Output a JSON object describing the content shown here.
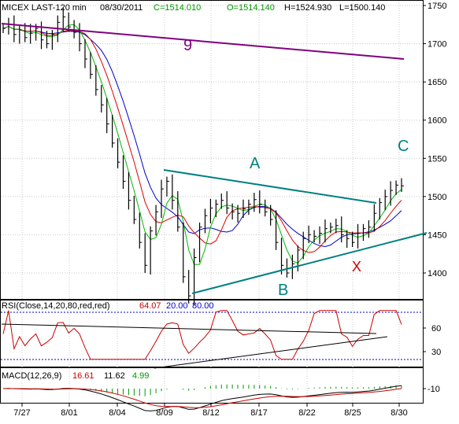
{
  "header": {
    "symbol": "MICEX LAST-120 min",
    "date": "08/30/2011",
    "close": "C=1514.010",
    "open": "O=1514.140",
    "high": "H=1524.930",
    "low": "L=1500.140"
  },
  "annotations": {
    "wave_9": "9",
    "point_a": "A",
    "point_b": "B",
    "point_c": "C",
    "point_x": "X"
  },
  "rsi_panel": {
    "label": "RSI(Close,14,20,80,red,red)",
    "value": "64.07",
    "lower": "20.00",
    "upper": "80.00",
    "ticks": [
      "60",
      "30"
    ]
  },
  "macd_panel": {
    "label": "MACD(12,26,9)",
    "macd": "16.61",
    "signal": "11.62",
    "hist": "4.99",
    "ticks": [
      "-10"
    ]
  },
  "colors": {
    "price": "#000000",
    "ma_fast": "#00bb00",
    "ma_mid": "#dd0000",
    "ma_slow": "#0000cc",
    "trendline": "#008080",
    "wave_line": "#800080",
    "rsi_line": "#cc0000",
    "label_red": "#cc0000",
    "label_blue": "#0000cc",
    "label_green": "#009900"
  },
  "chart_data": {
    "type": "line",
    "title": "MICEX LAST-120 min",
    "x_ticks": [
      "7/27",
      "8/01",
      "8/04",
      "8/09",
      "8/12",
      "8/17",
      "8/22",
      "8/25",
      "8/30"
    ],
    "ylim": [
      1360,
      1770
    ],
    "y_ticks": [
      1400,
      1450,
      1500,
      1550,
      1600,
      1650,
      1700,
      1750
    ],
    "series": [
      {
        "values": [
          1720,
          1725,
          1712,
          1718,
          1708,
          1714,
          1720,
          1705,
          1700,
          1712,
          1728,
          1735,
          1722,
          1715,
          1700,
          1680,
          1660,
          1640,
          1620,
          1595,
          1570,
          1545,
          1520,
          1495,
          1470,
          1440,
          1410,
          1455,
          1480,
          1510,
          1520,
          1495,
          1460,
          1395,
          1370,
          1420,
          1460,
          1475,
          1485,
          1490,
          1495,
          1485,
          1480,
          1478,
          1484,
          1490,
          1496,
          1490,
          1480,
          1470,
          1440,
          1410,
          1400,
          1412,
          1430,
          1445,
          1450,
          1448,
          1452,
          1458,
          1460,
          1462,
          1450,
          1445,
          1440,
          1452,
          1458,
          1460,
          1478,
          1492,
          1500,
          1508,
          1515,
          1514
        ]
      }
    ],
    "trendlines": [
      {
        "label": "9",
        "from": [
          "7/27",
          1728
        ],
        "to": [
          "8/30",
          1680
        ]
      },
      {
        "label": "A",
        "from": [
          "8/09",
          1530
        ],
        "to": [
          "8/30",
          1490
        ]
      },
      {
        "label": "B",
        "from": [
          "8/09",
          1368
        ],
        "to": [
          "8/30",
          1440
        ]
      }
    ],
    "rsi": {
      "upper": 80,
      "lower": 20,
      "last": 64.07
    },
    "macd": {
      "macd": 16.61,
      "signal": 11.62,
      "hist": 4.99
    },
    "grid": true
  }
}
